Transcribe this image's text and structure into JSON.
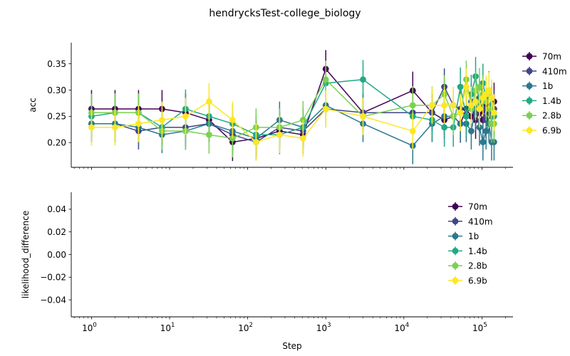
{
  "figure": {
    "title": "hendrycksTest-college_biology"
  },
  "chart_data": [
    {
      "type": "line",
      "panel": "top",
      "xlabel": "",
      "ylabel": "acc",
      "xscale": "log",
      "xlim": [
        0.55,
        250000
      ],
      "ylim": [
        0.153,
        0.39
      ],
      "x_ticks": [
        {
          "value": 1,
          "base": "10",
          "exp": "0"
        },
        {
          "value": 10,
          "base": "10",
          "exp": "1"
        },
        {
          "value": 100,
          "base": "10",
          "exp": "2"
        },
        {
          "value": 1000,
          "base": "10",
          "exp": "3"
        },
        {
          "value": 10000,
          "base": "10",
          "exp": "4"
        },
        {
          "value": 100000,
          "base": "10",
          "exp": "5"
        }
      ],
      "y_ticks": [
        {
          "value": 0.2,
          "label": "0.20"
        },
        {
          "value": 0.25,
          "label": "0.25"
        },
        {
          "value": 0.3,
          "label": "0.30"
        },
        {
          "value": 0.35,
          "label": "0.35"
        }
      ],
      "x_tick_labels_visible": false,
      "legend_position": "upper-right-outside",
      "series": [
        {
          "name": "70m",
          "color": "#440154",
          "x": [
            1,
            2,
            4,
            8,
            16,
            32,
            64,
            128,
            256,
            512,
            1000,
            3000,
            13000,
            23000,
            33000,
            43000,
            53000,
            63000,
            73000,
            83000,
            93000,
            103000,
            113000,
            123000,
            133000,
            143000
          ],
          "y": [
            0.264,
            0.264,
            0.264,
            0.264,
            0.257,
            0.243,
            0.201,
            0.208,
            0.222,
            0.215,
            0.34,
            0.257,
            0.299,
            0.257,
            0.243,
            0.25,
            0.236,
            0.264,
            0.25,
            0.243,
            0.257,
            0.243,
            0.271,
            0.257,
            0.25,
            0.278
          ],
          "err": 0.036
        },
        {
          "name": "410m",
          "color": "#414487",
          "x": [
            1,
            2,
            4,
            8,
            16,
            32,
            64,
            128,
            256,
            512,
            1000,
            3000,
            13000,
            23000,
            33000,
            43000,
            53000,
            63000,
            73000,
            83000,
            93000,
            103000,
            113000,
            123000,
            133000,
            143000
          ],
          "y": [
            0.236,
            0.236,
            0.222,
            0.229,
            0.229,
            0.236,
            0.215,
            0.201,
            0.229,
            0.222,
            0.264,
            0.257,
            0.257,
            0.257,
            0.306,
            0.271,
            0.264,
            0.25,
            0.278,
            0.257,
            0.285,
            0.264,
            0.243,
            0.257,
            0.271,
            0.264
          ],
          "err": 0.035
        },
        {
          "name": "1b",
          "color": "#2a788e",
          "x": [
            1,
            2,
            4,
            8,
            16,
            32,
            64,
            128,
            256,
            512,
            1000,
            3000,
            13000,
            23000,
            33000,
            43000,
            53000,
            63000,
            73000,
            83000,
            93000,
            103000,
            113000,
            123000,
            133000,
            143000
          ],
          "y": [
            0.236,
            0.236,
            0.229,
            0.215,
            0.222,
            0.236,
            0.222,
            0.208,
            0.243,
            0.229,
            0.271,
            0.236,
            0.194,
            0.236,
            0.25,
            0.25,
            0.236,
            0.236,
            0.222,
            0.264,
            0.229,
            0.201,
            0.222,
            0.236,
            0.201,
            0.201
          ],
          "err": 0.035
        },
        {
          "name": "1.4b",
          "color": "#22a884",
          "x": [
            1,
            2,
            4,
            8,
            16,
            32,
            64,
            128,
            256,
            512,
            1000,
            3000,
            13000,
            23000,
            33000,
            43000,
            53000,
            63000,
            73000,
            83000,
            93000,
            103000,
            113000,
            123000,
            133000,
            143000
          ],
          "y": [
            0.25,
            0.257,
            0.257,
            0.229,
            0.264,
            0.25,
            0.236,
            0.215,
            0.215,
            0.229,
            0.313,
            0.32,
            0.25,
            0.243,
            0.229,
            0.229,
            0.306,
            0.25,
            0.292,
            0.326,
            0.271,
            0.313,
            0.285,
            0.299,
            0.271,
            0.25
          ],
          "err": 0.037
        },
        {
          "name": "2.8b",
          "color": "#7ad151",
          "x": [
            1,
            2,
            4,
            8,
            16,
            32,
            64,
            128,
            256,
            512,
            1000,
            3000,
            13000,
            23000,
            33000,
            43000,
            53000,
            63000,
            73000,
            83000,
            93000,
            103000,
            113000,
            123000,
            133000,
            143000
          ],
          "y": [
            0.257,
            0.257,
            0.257,
            0.222,
            0.222,
            0.215,
            0.208,
            0.229,
            0.229,
            0.243,
            0.32,
            0.25,
            0.271,
            0.271,
            0.292,
            0.25,
            0.257,
            0.32,
            0.264,
            0.299,
            0.306,
            0.292,
            0.278,
            0.264,
            0.236,
            0.236
          ],
          "err": 0.036
        },
        {
          "name": "6.9b",
          "color": "#fde725",
          "x": [
            1,
            2,
            4,
            8,
            16,
            32,
            64,
            128,
            256,
            512,
            1000,
            3000,
            13000,
            23000,
            33000,
            43000,
            53000,
            63000,
            73000,
            83000,
            93000,
            103000,
            113000,
            123000,
            133000,
            143000
          ],
          "y": [
            0.229,
            0.229,
            0.236,
            0.243,
            0.25,
            0.278,
            0.243,
            0.201,
            0.215,
            0.208,
            0.264,
            0.25,
            0.222,
            0.271,
            0.271,
            0.271,
            0.257,
            0.306,
            0.271,
            0.278,
            0.264,
            0.285,
            0.292,
            0.299,
            0.285,
            0.257
          ],
          "err": 0.035
        }
      ]
    },
    {
      "type": "line",
      "panel": "bottom",
      "xlabel": "Step",
      "ylabel": "likelihood_difference",
      "xscale": "log",
      "xlim": [
        0.55,
        250000
      ],
      "ylim": [
        -0.055,
        0.055
      ],
      "x_ticks": [
        {
          "value": 1,
          "base": "10",
          "exp": "0"
        },
        {
          "value": 10,
          "base": "10",
          "exp": "1"
        },
        {
          "value": 100,
          "base": "10",
          "exp": "2"
        },
        {
          "value": 1000,
          "base": "10",
          "exp": "3"
        },
        {
          "value": 10000,
          "base": "10",
          "exp": "4"
        },
        {
          "value": 100000,
          "base": "10",
          "exp": "5"
        }
      ],
      "y_ticks": [
        {
          "value": 0.04,
          "label": "0.04"
        },
        {
          "value": 0.02,
          "label": "0.02"
        },
        {
          "value": 0.0,
          "label": "0.00"
        },
        {
          "value": -0.02,
          "label": "−0.02"
        },
        {
          "value": -0.04,
          "label": "−0.04"
        }
      ],
      "x_tick_labels_visible": true,
      "legend_position": "upper-right",
      "series": [
        {
          "name": "70m",
          "color": "#440154",
          "x": [],
          "y": []
        },
        {
          "name": "410m",
          "color": "#414487",
          "x": [],
          "y": []
        },
        {
          "name": "1b",
          "color": "#2a788e",
          "x": [],
          "y": []
        },
        {
          "name": "1.4b",
          "color": "#22a884",
          "x": [],
          "y": []
        },
        {
          "name": "2.8b",
          "color": "#7ad151",
          "x": [],
          "y": []
        },
        {
          "name": "6.9b",
          "color": "#fde725",
          "x": [],
          "y": []
        }
      ]
    }
  ]
}
